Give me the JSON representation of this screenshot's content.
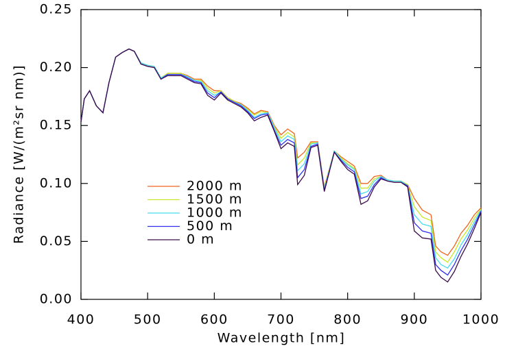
{
  "chart_data": {
    "type": "line",
    "xlabel": "Wavelength [nm]",
    "ylabel": "Radiance [W/(m²sr nm)]",
    "x": [
      400,
      405,
      413,
      423,
      433,
      442,
      452,
      462,
      472,
      480,
      490,
      500,
      510,
      520,
      530,
      540,
      550,
      560,
      570,
      580,
      590,
      600,
      610,
      620,
      630,
      640,
      650,
      660,
      670,
      680,
      690,
      700,
      710,
      720,
      725,
      735,
      745,
      755,
      765,
      780,
      790,
      800,
      810,
      820,
      830,
      840,
      850,
      860,
      870,
      880,
      890,
      900,
      912,
      925,
      932,
      940,
      950,
      960,
      970,
      980,
      990,
      1000
    ],
    "series": [
      {
        "name": "2000 m",
        "color": "#f0641e",
        "values": [
          0.153,
          0.173,
          0.18,
          0.167,
          0.161,
          0.187,
          0.209,
          0.213,
          0.216,
          0.214,
          0.204,
          0.202,
          0.201,
          0.191,
          0.195,
          0.195,
          0.195,
          0.193,
          0.19,
          0.19,
          0.184,
          0.18,
          0.18,
          0.174,
          0.171,
          0.169,
          0.165,
          0.16,
          0.163,
          0.162,
          0.15,
          0.142,
          0.147,
          0.143,
          0.122,
          0.127,
          0.136,
          0.136,
          0.097,
          0.128,
          0.123,
          0.119,
          0.115,
          0.1,
          0.1,
          0.106,
          0.107,
          0.103,
          0.102,
          0.102,
          0.099,
          0.087,
          0.077,
          0.073,
          0.046,
          0.041,
          0.038,
          0.046,
          0.057,
          0.064,
          0.073,
          0.079
        ]
      },
      {
        "name": "1500 m",
        "color": "#c8e628",
        "values": [
          0.153,
          0.173,
          0.18,
          0.167,
          0.161,
          0.187,
          0.209,
          0.213,
          0.216,
          0.214,
          0.204,
          0.202,
          0.201,
          0.191,
          0.195,
          0.195,
          0.195,
          0.192,
          0.189,
          0.189,
          0.182,
          0.178,
          0.18,
          0.174,
          0.171,
          0.168,
          0.164,
          0.159,
          0.162,
          0.161,
          0.149,
          0.139,
          0.144,
          0.14,
          0.116,
          0.122,
          0.135,
          0.135,
          0.096,
          0.128,
          0.122,
          0.117,
          0.113,
          0.096,
          0.096,
          0.104,
          0.106,
          0.103,
          0.102,
          0.102,
          0.099,
          0.08,
          0.071,
          0.068,
          0.041,
          0.036,
          0.032,
          0.041,
          0.052,
          0.06,
          0.07,
          0.078
        ]
      },
      {
        "name": "1000 m",
        "color": "#46dcf0",
        "values": [
          0.153,
          0.173,
          0.18,
          0.167,
          0.161,
          0.187,
          0.209,
          0.213,
          0.216,
          0.214,
          0.204,
          0.202,
          0.201,
          0.191,
          0.194,
          0.194,
          0.194,
          0.192,
          0.189,
          0.188,
          0.18,
          0.176,
          0.179,
          0.173,
          0.17,
          0.168,
          0.163,
          0.157,
          0.16,
          0.161,
          0.148,
          0.136,
          0.141,
          0.138,
          0.111,
          0.117,
          0.134,
          0.135,
          0.095,
          0.128,
          0.121,
          0.116,
          0.112,
          0.091,
          0.093,
          0.102,
          0.106,
          0.103,
          0.102,
          0.102,
          0.098,
          0.073,
          0.065,
          0.063,
          0.036,
          0.03,
          0.027,
          0.035,
          0.047,
          0.056,
          0.067,
          0.077
        ]
      },
      {
        "name": "500 m",
        "color": "#2d2df0",
        "values": [
          0.153,
          0.173,
          0.18,
          0.167,
          0.161,
          0.187,
          0.209,
          0.213,
          0.216,
          0.214,
          0.203,
          0.201,
          0.2,
          0.19,
          0.194,
          0.194,
          0.194,
          0.191,
          0.188,
          0.187,
          0.178,
          0.174,
          0.179,
          0.173,
          0.17,
          0.167,
          0.162,
          0.156,
          0.159,
          0.16,
          0.146,
          0.133,
          0.138,
          0.135,
          0.105,
          0.112,
          0.132,
          0.134,
          0.094,
          0.127,
          0.12,
          0.114,
          0.11,
          0.087,
          0.089,
          0.099,
          0.105,
          0.102,
          0.101,
          0.101,
          0.098,
          0.066,
          0.059,
          0.057,
          0.03,
          0.025,
          0.021,
          0.03,
          0.042,
          0.052,
          0.064,
          0.076
        ]
      },
      {
        "name": "0 m",
        "color": "#3c0a4b",
        "values": [
          0.153,
          0.173,
          0.18,
          0.167,
          0.161,
          0.187,
          0.209,
          0.213,
          0.216,
          0.214,
          0.203,
          0.201,
          0.2,
          0.19,
          0.193,
          0.193,
          0.193,
          0.19,
          0.187,
          0.186,
          0.176,
          0.172,
          0.178,
          0.172,
          0.169,
          0.166,
          0.161,
          0.154,
          0.157,
          0.159,
          0.145,
          0.13,
          0.135,
          0.132,
          0.099,
          0.107,
          0.131,
          0.133,
          0.093,
          0.127,
          0.119,
          0.112,
          0.108,
          0.082,
          0.085,
          0.097,
          0.104,
          0.102,
          0.101,
          0.101,
          0.097,
          0.059,
          0.053,
          0.052,
          0.025,
          0.019,
          0.015,
          0.024,
          0.037,
          0.048,
          0.061,
          0.075
        ]
      }
    ],
    "xlim": [
      400,
      1000
    ],
    "xticks": [
      400,
      500,
      600,
      700,
      800,
      900,
      1000
    ],
    "ylim": [
      0,
      0.25
    ],
    "yticks": [
      {
        "value": 0,
        "label": "0.00"
      },
      0.05,
      {
        "value": 0.1,
        "label": "0.10"
      },
      0.15,
      {
        "value": 0.2,
        "label": "0.20"
      },
      0.25
    ],
    "grid": false
  }
}
